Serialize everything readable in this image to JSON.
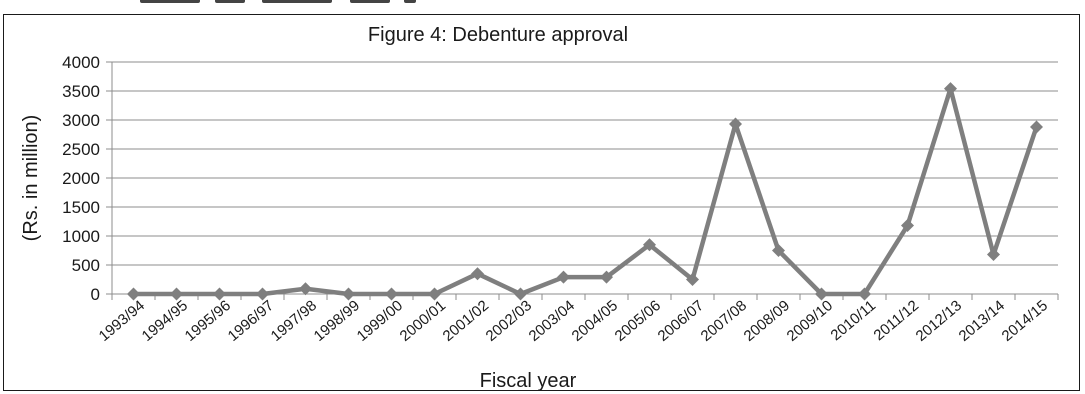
{
  "chart_data": {
    "type": "line",
    "title": "Figure 4: Debenture approval",
    "xlabel": "Fiscal year",
    "ylabel": "(Rs. in million)",
    "ylim": [
      0,
      4000
    ],
    "yticks": [
      "0",
      "500",
      "1000",
      "1500",
      "2000",
      "2500",
      "3000",
      "3500",
      "4000"
    ],
    "grid": "horizontal",
    "legend": "none",
    "categories": [
      "1993/94",
      "1994/95",
      "1995/96",
      "1996/97",
      "1997/98",
      "1998/99",
      "1999/00",
      "2000/01",
      "2001/02",
      "2002/03",
      "2003/04",
      "2004/05",
      "2005/06",
      "2006/07",
      "2007/08",
      "2008/09",
      "2009/10",
      "2010/11",
      "2011/12",
      "2012/13",
      "2013/14",
      "2014/15"
    ],
    "series": [
      {
        "values": [
          0,
          0,
          0,
          0,
          90,
          0,
          0,
          0,
          350,
          0,
          290,
          290,
          850,
          250,
          2930,
          750,
          0,
          0,
          1180,
          3540,
          680,
          2880
        ],
        "color": "#7f7f7f",
        "marker": "diamond"
      }
    ]
  }
}
